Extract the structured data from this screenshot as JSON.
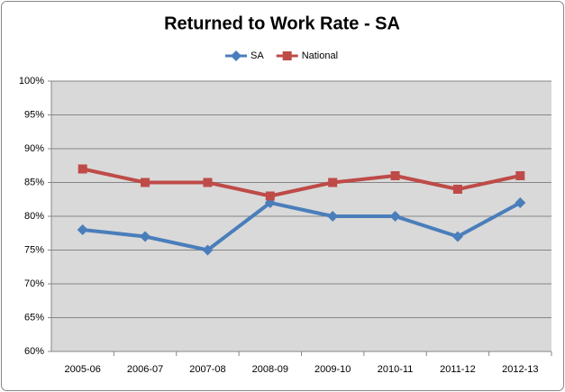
{
  "chart_data": {
    "type": "line",
    "title": "Returned to Work Rate - SA",
    "categories": [
      "2005-06",
      "2006-07",
      "2007-08",
      "2008-09",
      "2009-10",
      "2010-11",
      "2011-12",
      "2012-13"
    ],
    "series": [
      {
        "name": "SA",
        "color": "#4a7ebb",
        "marker": "diamond",
        "values": [
          78,
          77,
          75,
          82,
          80,
          80,
          77,
          82
        ]
      },
      {
        "name": "National",
        "color": "#be4b48",
        "marker": "square",
        "values": [
          87,
          85,
          85,
          83,
          85,
          86,
          84,
          86
        ]
      }
    ],
    "ylim": [
      60,
      100
    ],
    "yticks": [
      {
        "value": 60,
        "label": "60%"
      },
      {
        "value": 65,
        "label": "65%"
      },
      {
        "value": 70,
        "label": "70%"
      },
      {
        "value": 75,
        "label": "75%"
      },
      {
        "value": 80,
        "label": "80%"
      },
      {
        "value": 85,
        "label": "85%"
      },
      {
        "value": 90,
        "label": "90%"
      },
      {
        "value": 95,
        "label": "95%"
      },
      {
        "value": 100,
        "label": "100%"
      }
    ],
    "grid": true,
    "legend": "top"
  }
}
